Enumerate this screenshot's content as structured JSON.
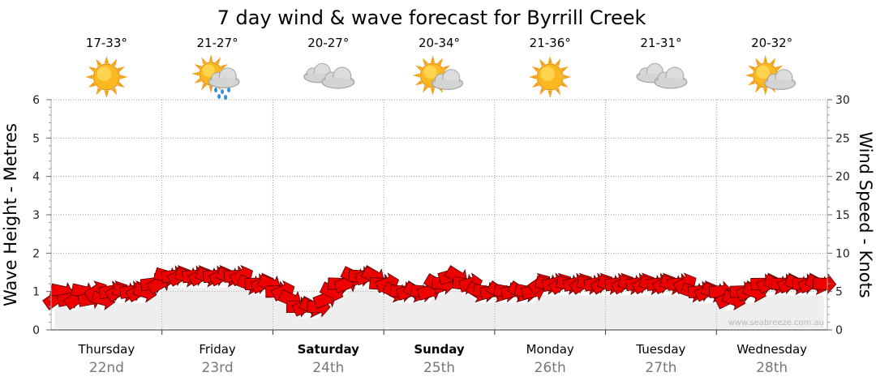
{
  "chart_data": {
    "type": "line",
    "title": "7 day wind & wave forecast for Byrrill Creek",
    "ylabel_left": "Wave Height - Metres",
    "ylabel_right": "Wind Speed - Knots",
    "ylim_left": [
      0,
      6
    ],
    "ylim_right": [
      0,
      30
    ],
    "yticks_left": [
      "0",
      "1",
      "2",
      "3",
      "4",
      "5",
      "6"
    ],
    "yticks_right": [
      "0",
      "5",
      "10",
      "15",
      "20",
      "25",
      "30"
    ],
    "grid": true,
    "watermark": "www.seabreeze.com.au",
    "days": [
      {
        "name": "Thursday",
        "date": "22nd",
        "bold": false,
        "temp": "17-33°",
        "icon": "sun-icon"
      },
      {
        "name": "Friday",
        "date": "23rd",
        "bold": false,
        "temp": "21-27°",
        "icon": "rain-cloud-sun-icon"
      },
      {
        "name": "Saturday",
        "date": "24th",
        "bold": true,
        "temp": "20-27°",
        "icon": "cloud-icon"
      },
      {
        "name": "Sunday",
        "date": "25th",
        "bold": true,
        "temp": "20-34°",
        "icon": "partly-cloudy-icon"
      },
      {
        "name": "Monday",
        "date": "26th",
        "bold": false,
        "temp": "21-36°",
        "icon": "sun-icon"
      },
      {
        "name": "Tuesday",
        "date": "27th",
        "bold": false,
        "temp": "21-31°",
        "icon": "cloud-icon"
      },
      {
        "name": "Wednesday",
        "date": "28th",
        "bold": false,
        "temp": "20-32°",
        "icon": "partly-cloudy-icon"
      }
    ],
    "wind_knots": [
      4,
      5,
      4,
      4,
      5,
      4,
      5,
      4,
      5,
      5,
      5,
      5,
      5,
      5,
      6,
      6,
      7,
      7,
      7,
      7,
      7,
      7,
      7,
      7,
      7,
      7,
      7,
      7,
      6,
      6,
      6,
      6,
      5,
      5,
      4,
      3,
      3,
      3,
      3,
      4,
      5,
      6,
      6,
      7,
      7,
      7,
      7,
      6,
      6,
      5,
      5,
      5,
      5,
      5,
      5,
      6,
      6,
      7,
      7,
      6,
      6,
      5,
      5,
      5,
      5,
      5,
      5,
      5,
      5,
      5,
      6,
      6,
      6,
      6,
      6,
      6,
      6,
      6,
      6,
      6,
      6,
      6,
      6,
      6,
      6,
      6,
      6,
      6,
      6,
      6,
      6,
      6,
      5,
      5,
      5,
      5,
      5,
      4,
      4,
      5,
      5,
      5,
      6,
      6,
      6,
      6,
      6,
      6,
      6,
      6,
      6,
      6
    ],
    "wind_colors": {
      "arrow": "#ee0000",
      "outline": "#550000",
      "wave_shadow": "#cfcfcf"
    }
  }
}
